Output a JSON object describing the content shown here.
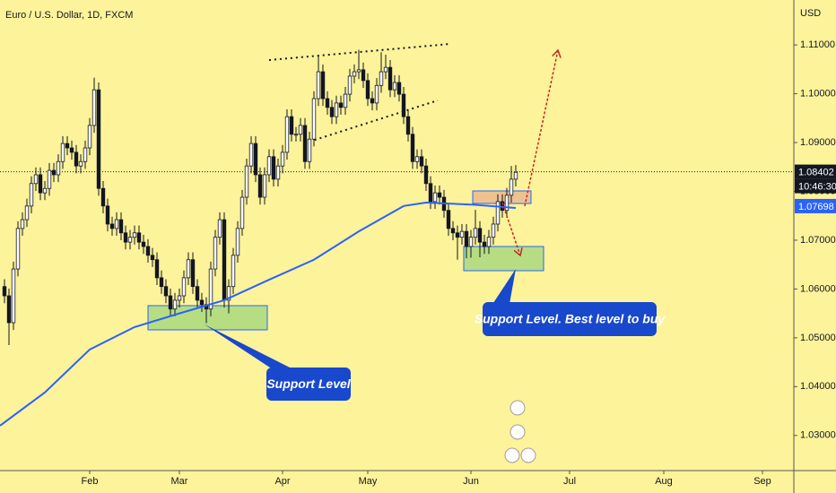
{
  "chart_data": {
    "type": "candlestick",
    "title": "Euro / U.S. Dollar, 1D, FXCM",
    "currency": "USD",
    "up_color": "#ffffff",
    "down_color": "#131722",
    "background": "#fdf39a",
    "open": [
      1.0605,
      1.0586,
      1.0531,
      1.0641,
      1.0724,
      1.0742,
      1.077,
      1.0816,
      1.0834,
      1.0797,
      1.0806,
      1.0843,
      1.0834,
      1.0861,
      1.0898,
      1.0889,
      1.088,
      1.0852,
      1.0861,
      1.0889,
      1.0935,
      1.1008,
      1.0806,
      1.077,
      1.0733,
      1.0724,
      1.0742,
      1.0715,
      1.0696,
      1.0706,
      1.0715,
      1.0696,
      1.0687,
      1.0669,
      1.066,
      1.0623,
      1.0605,
      1.0586,
      1.0559,
      1.0577,
      1.0586,
      1.0623,
      1.066,
      1.0605,
      1.0577,
      1.0568,
      1.0559,
      1.0641,
      1.0706,
      1.0742,
      1.0577,
      1.0605,
      1.0669,
      1.0724,
      1.0788,
      1.0852,
      1.0898,
      1.0834,
      1.0788,
      1.0834,
      1.0871,
      1.0825,
      1.0852,
      1.088,
      1.0953,
      1.0917,
      1.0917,
      1.0935,
      1.0861,
      1.0907,
      1.099,
      1.1045,
      1.099,
      1.0972,
      1.0953,
      1.0981,
      1.0972,
      1.0999,
      1.1036,
      1.1045,
      1.1049,
      1.1027,
      1.099,
      1.0981,
      1.1017,
      1.1045,
      1.1054,
      1.1008,
      1.1023,
      1.0999,
      1.0953,
      1.0917,
      1.0861,
      1.0871,
      1.0852,
      1.0816,
      1.0779,
      1.0797,
      1.0788,
      1.0761,
      1.0724,
      1.0715,
      1.0706,
      1.0718,
      1.0687,
      1.0706,
      1.0724,
      1.0696,
      1.0687,
      1.0706,
      1.0733,
      1.0779,
      1.0761,
      1.0792,
      1.0825
    ],
    "high": [
      1.062,
      1.0601,
      1.0656,
      1.0739,
      1.0757,
      1.0785,
      1.0831,
      1.0849,
      1.0849,
      1.0821,
      1.0858,
      1.0858,
      1.0876,
      1.0913,
      1.0913,
      1.0904,
      1.0895,
      1.0876,
      1.0904,
      1.095,
      1.1033,
      1.1023,
      1.0821,
      1.0785,
      1.0748,
      1.0757,
      1.0757,
      1.073,
      1.0721,
      1.073,
      1.073,
      1.0711,
      1.0702,
      1.0684,
      1.0675,
      1.0638,
      1.062,
      1.0601,
      1.0592,
      1.0601,
      1.0638,
      1.0675,
      1.0675,
      1.062,
      1.0592,
      1.0583,
      1.0656,
      1.0721,
      1.0757,
      1.0757,
      1.062,
      1.0684,
      1.0739,
      1.0803,
      1.0867,
      1.0913,
      1.0913,
      1.0849,
      1.0849,
      1.0886,
      1.0886,
      1.0867,
      1.0895,
      1.0968,
      1.0968,
      1.0932,
      1.095,
      1.095,
      1.0922,
      1.1005,
      1.1078,
      1.106,
      1.1005,
      1.0987,
      1.0996,
      1.0996,
      1.1014,
      1.1051,
      1.106,
      1.109,
      1.1064,
      1.1042,
      1.1005,
      1.1032,
      1.1085,
      1.108,
      1.1069,
      1.1038,
      1.1038,
      1.1014,
      1.0968,
      1.0932,
      1.0886,
      1.0886,
      1.0867,
      1.0831,
      1.0812,
      1.0812,
      1.0803,
      1.0776,
      1.0739,
      1.073,
      1.0733,
      1.0733,
      1.0721,
      1.0762,
      1.0739,
      1.0711,
      1.0721,
      1.0748,
      1.0794,
      1.0794,
      1.0807,
      1.0852,
      1.0854
    ],
    "low": [
      1.0571,
      1.0485,
      1.0516,
      1.0626,
      1.0709,
      1.0727,
      1.0755,
      1.0801,
      1.0782,
      1.0782,
      1.0791,
      1.0819,
      1.0819,
      1.0846,
      1.0874,
      1.0865,
      1.0837,
      1.0837,
      1.0846,
      1.0874,
      1.092,
      1.0791,
      1.0755,
      1.0718,
      1.0709,
      1.0709,
      1.07,
      1.0681,
      1.0681,
      1.0691,
      1.0681,
      1.0672,
      1.0654,
      1.0645,
      1.0608,
      1.059,
      1.0571,
      1.0544,
      1.0544,
      1.0562,
      1.0571,
      1.0608,
      1.059,
      1.0562,
      1.0553,
      1.053,
      1.0544,
      1.0626,
      1.0691,
      1.0562,
      1.055,
      1.059,
      1.0654,
      1.0709,
      1.0773,
      1.0837,
      1.0819,
      1.0773,
      1.0773,
      1.0819,
      1.081,
      1.081,
      1.0837,
      1.0865,
      1.0902,
      1.0902,
      1.0902,
      1.0846,
      1.0846,
      1.0892,
      1.0975,
      1.0975,
      1.0957,
      1.0938,
      1.0938,
      1.0957,
      1.0957,
      1.0984,
      1.1021,
      1.103,
      1.1012,
      1.0975,
      1.0966,
      1.0966,
      1.1002,
      1.103,
      1.0993,
      1.0993,
      1.0984,
      1.0938,
      1.0902,
      1.0846,
      1.0846,
      1.0837,
      1.0801,
      1.0764,
      1.0764,
      1.0773,
      1.0746,
      1.0709,
      1.07,
      1.066,
      1.0691,
      1.0663,
      1.0664,
      1.0691,
      1.0665,
      1.0672,
      1.0672,
      1.0691,
      1.0718,
      1.0746,
      1.0746,
      1.0777,
      1.081
    ],
    "close": [
      1.0586,
      1.0531,
      1.0641,
      1.0724,
      1.0742,
      1.077,
      1.0816,
      1.0834,
      1.0797,
      1.0806,
      1.0843,
      1.0834,
      1.0861,
      1.0898,
      1.0889,
      1.088,
      1.0852,
      1.0861,
      1.0889,
      1.0935,
      1.1008,
      1.0806,
      1.077,
      1.0733,
      1.0724,
      1.0742,
      1.0715,
      1.0696,
      1.0706,
      1.0715,
      1.0696,
      1.0687,
      1.0669,
      1.066,
      1.0623,
      1.0605,
      1.0586,
      1.0559,
      1.0577,
      1.0586,
      1.0623,
      1.066,
      1.0605,
      1.0577,
      1.0568,
      1.0559,
      1.0641,
      1.0706,
      1.0742,
      1.0577,
      1.0605,
      1.0669,
      1.0724,
      1.0788,
      1.0852,
      1.0898,
      1.0834,
      1.0788,
      1.0834,
      1.0871,
      1.0825,
      1.0852,
      1.088,
      1.0953,
      1.0917,
      1.0917,
      1.0935,
      1.0861,
      1.0907,
      1.099,
      1.1045,
      1.099,
      1.0972,
      1.0953,
      1.0981,
      1.0972,
      1.0999,
      1.1036,
      1.1045,
      1.1049,
      1.1027,
      1.099,
      1.0981,
      1.1017,
      1.1045,
      1.1054,
      1.1008,
      1.1023,
      1.0999,
      1.0953,
      1.0917,
      1.0861,
      1.0871,
      1.0852,
      1.0816,
      1.0779,
      1.0797,
      1.0788,
      1.0761,
      1.0724,
      1.0715,
      1.0706,
      1.0718,
      1.0687,
      1.0706,
      1.0724,
      1.0696,
      1.0687,
      1.0706,
      1.0733,
      1.0779,
      1.0761,
      1.0792,
      1.0825,
      1.0839
    ],
    "ma": {
      "color": "#2962ff",
      "x": [
        -1,
        9,
        19,
        29,
        39,
        49,
        59,
        69,
        79,
        89,
        94,
        104,
        114
      ],
      "values": [
        1.032,
        1.0388,
        1.0476,
        1.0522,
        1.055,
        1.0577,
        1.0619,
        1.066,
        1.0718,
        1.077,
        1.0777,
        1.0773,
        1.0766
      ],
      "last": 1.07698
    },
    "price_line": {
      "value": 1.08402,
      "countdown": "10:46:30"
    },
    "xlim": [
      -1,
      176
    ],
    "xticks": [
      {
        "value": 19,
        "label": "Feb"
      },
      {
        "value": 39,
        "label": "Mar"
      },
      {
        "value": 62,
        "label": "Apr"
      },
      {
        "value": 81,
        "label": "May"
      },
      {
        "value": 104,
        "label": "Jun"
      },
      {
        "value": 126,
        "label": "Jul"
      },
      {
        "value": 147,
        "label": "Aug"
      },
      {
        "value": 169,
        "label": "Sep"
      }
    ],
    "ylim": [
      1.0228,
      1.1192
    ],
    "yticks": [
      {
        "value": 1.03,
        "label": "1.03000"
      },
      {
        "value": 1.04,
        "label": "1.04000"
      },
      {
        "value": 1.05,
        "label": "1.05000"
      },
      {
        "value": 1.06,
        "label": "1.06000"
      },
      {
        "value": 1.07,
        "label": "1.07000"
      },
      {
        "value": 1.08,
        "label": "1.08000"
      },
      {
        "value": 1.09,
        "label": "1.09000"
      },
      {
        "value": 1.1,
        "label": "1.10000"
      },
      {
        "value": 1.11,
        "label": "1.11000"
      }
    ],
    "annotations": [
      "Support Level",
      "Support Level. Best level to buy"
    ]
  }
}
